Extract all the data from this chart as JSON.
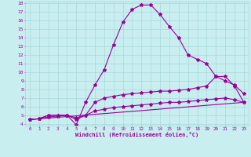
{
  "xlabel": "Windchill (Refroidissement éolien,°C)",
  "bg_color": "#c8eef0",
  "line_color": "#990099",
  "grid_color": "#a8d8d8",
  "xlim": [
    -0.5,
    23.5
  ],
  "ylim": [
    3.8,
    18.2
  ],
  "xticks": [
    0,
    1,
    2,
    3,
    4,
    5,
    6,
    7,
    8,
    9,
    10,
    11,
    12,
    13,
    14,
    15,
    16,
    17,
    18,
    19,
    20,
    21,
    22,
    23
  ],
  "yticks": [
    4,
    5,
    6,
    7,
    8,
    9,
    10,
    11,
    12,
    13,
    14,
    15,
    16,
    17,
    18
  ],
  "curves": [
    {
      "x": [
        0,
        1,
        2,
        3,
        4,
        5,
        6,
        7,
        8,
        9,
        10,
        11,
        12,
        13,
        14,
        15,
        16,
        17,
        18,
        19,
        20,
        21,
        22,
        23
      ],
      "y": [
        4.5,
        4.6,
        5.0,
        5.0,
        5.0,
        3.9,
        6.5,
        8.5,
        10.3,
        13.2,
        15.8,
        17.3,
        17.8,
        17.8,
        16.7,
        15.3,
        14.0,
        12.0,
        11.5,
        11.0,
        9.5,
        9.5,
        8.4,
        6.5
      ],
      "marker": true
    },
    {
      "x": [
        0,
        1,
        2,
        3,
        4,
        5,
        6,
        7,
        8,
        9,
        10,
        11,
        12,
        13,
        14,
        15,
        16,
        17,
        18,
        19,
        20,
        21,
        22,
        23
      ],
      "y": [
        4.5,
        4.6,
        5.0,
        5.0,
        5.0,
        4.5,
        5.0,
        6.5,
        7.0,
        7.2,
        7.4,
        7.5,
        7.6,
        7.7,
        7.8,
        7.8,
        7.9,
        8.0,
        8.2,
        8.4,
        9.5,
        9.0,
        8.5,
        7.5
      ],
      "marker": true
    },
    {
      "x": [
        0,
        1,
        2,
        3,
        4,
        5,
        6,
        7,
        8,
        9,
        10,
        11,
        12,
        13,
        14,
        15,
        16,
        17,
        18,
        19,
        20,
        21,
        22,
        23
      ],
      "y": [
        4.5,
        4.6,
        4.8,
        4.9,
        5.0,
        4.7,
        5.0,
        5.5,
        5.7,
        5.9,
        6.0,
        6.1,
        6.2,
        6.3,
        6.4,
        6.5,
        6.5,
        6.6,
        6.7,
        6.8,
        6.9,
        7.0,
        6.8,
        6.5
      ],
      "marker": true
    },
    {
      "x": [
        0,
        23
      ],
      "y": [
        4.5,
        6.5
      ],
      "marker": false
    }
  ]
}
